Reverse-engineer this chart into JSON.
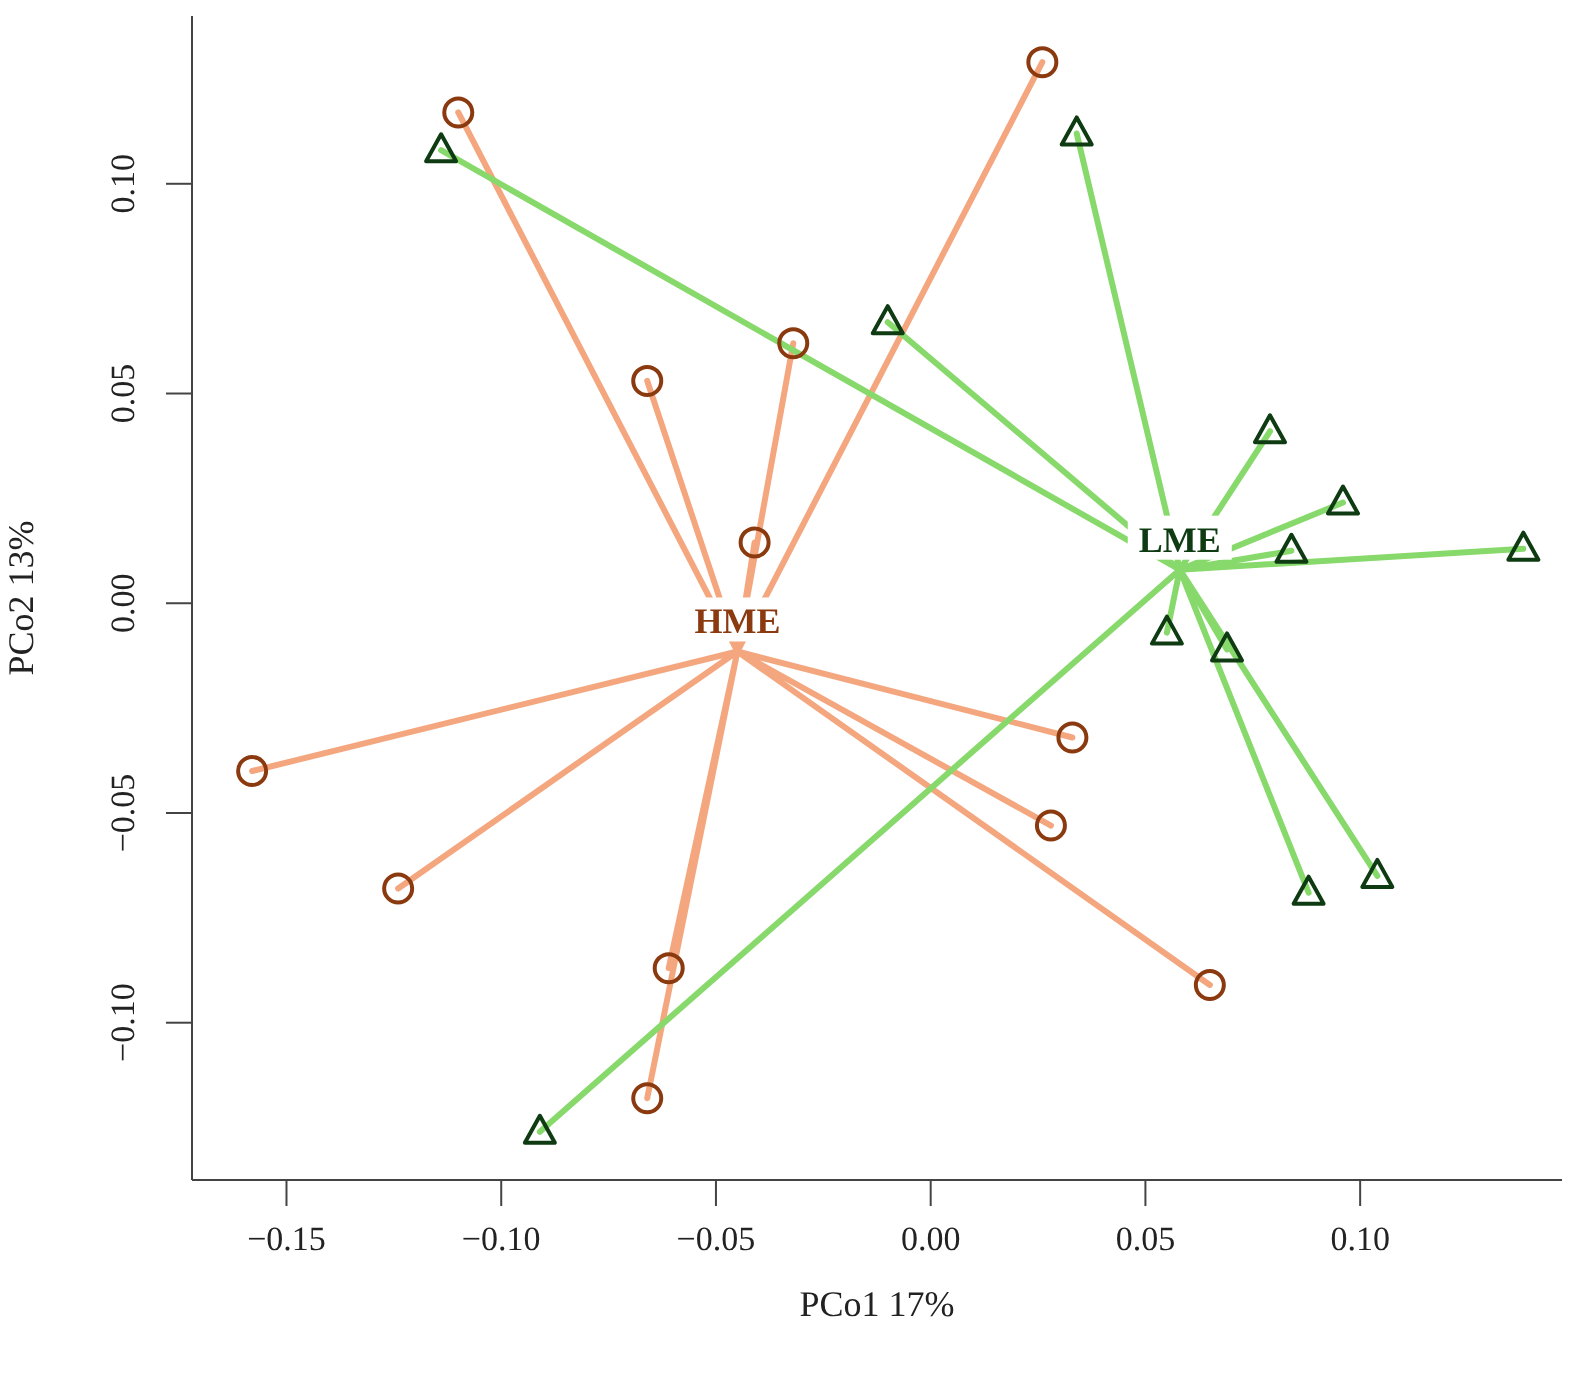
{
  "chart_data": {
    "type": "scatter",
    "xlabel": "PCo1 17%",
    "ylabel": "PCo2 13%",
    "xlim": [
      -0.172,
      0.147
    ],
    "ylim": [
      -0.1375,
      0.14
    ],
    "xticks": [
      {
        "value": -0.15,
        "label": "−0.15"
      },
      {
        "value": -0.1,
        "label": "−0.10"
      },
      {
        "value": -0.05,
        "label": "−0.05"
      },
      {
        "value": 0,
        "label": "0.00"
      },
      {
        "value": 0.05,
        "label": "0.05"
      },
      {
        "value": 0.1,
        "label": "0.10"
      }
    ],
    "yticks": [
      {
        "value": -0.1,
        "label": "−0.10"
      },
      {
        "value": -0.05,
        "label": "−0.05"
      },
      {
        "value": 0,
        "label": "0.00"
      },
      {
        "value": 0.05,
        "label": "0.05"
      },
      {
        "value": 0.1,
        "label": "0.10"
      }
    ],
    "grid": false,
    "annotations": [
      {
        "text": "HME",
        "x": -0.045,
        "y": -0.0115
      },
      {
        "text": "LME",
        "x": 0.058,
        "y": 0.008
      }
    ],
    "series": [
      {
        "type": "line",
        "color": "#f4a77f",
        "marker": "none",
        "x": [
          -0.045,
          -0.11,
          -0.045,
          0.026,
          -0.045,
          -0.066,
          -0.045,
          -0.032,
          -0.045,
          -0.041,
          -0.045,
          -0.158,
          -0.045,
          -0.124,
          -0.045,
          0.033,
          -0.045,
          0.028,
          -0.045,
          0.065,
          -0.045,
          -0.061,
          -0.045,
          -0.066
        ],
        "values": [
          -0.0115,
          0.117,
          -0.0115,
          0.129,
          -0.0115,
          0.053,
          -0.0115,
          0.062,
          -0.0115,
          0.0145,
          -0.0115,
          -0.04,
          -0.0115,
          -0.068,
          -0.0115,
          -0.032,
          -0.0115,
          -0.053,
          -0.0115,
          -0.091,
          -0.0115,
          -0.087,
          -0.0115,
          -0.118
        ]
      },
      {
        "type": "line",
        "color": "#88d96b",
        "marker": "none",
        "x": [
          0.058,
          -0.114,
          0.058,
          0.034,
          0.058,
          -0.01,
          0.058,
          0.079,
          0.058,
          0.096,
          0.058,
          0.084,
          0.058,
          0.138,
          0.058,
          0.055,
          0.058,
          0.069,
          0.058,
          0.088,
          0.058,
          0.104,
          0.058,
          -0.091
        ],
        "values": [
          0.008,
          0.108,
          0.008,
          0.112,
          0.008,
          0.067,
          0.008,
          0.041,
          0.008,
          0.024,
          0.008,
          0.0125,
          0.008,
          0.013,
          0.008,
          -0.007,
          0.008,
          -0.011,
          0.008,
          -0.069,
          0.008,
          -0.065,
          0.008,
          -0.126
        ]
      },
      {
        "color": "#8b3a10",
        "marker": "circle",
        "x": [
          -0.11,
          0.026,
          -0.066,
          -0.032,
          -0.041,
          -0.158,
          -0.124,
          0.033,
          0.028,
          0.065,
          -0.061,
          -0.066
        ],
        "values": [
          0.117,
          0.129,
          0.053,
          0.062,
          0.0145,
          -0.04,
          -0.068,
          -0.032,
          -0.053,
          -0.091,
          -0.087,
          -0.118
        ]
      },
      {
        "color": "#0e3b12",
        "marker": "triangle",
        "x": [
          -0.114,
          0.034,
          -0.01,
          0.079,
          0.096,
          0.084,
          0.138,
          0.055,
          0.069,
          0.088,
          0.104,
          -0.091
        ],
        "values": [
          0.108,
          0.112,
          0.067,
          0.041,
          0.024,
          0.0125,
          0.013,
          -0.007,
          -0.011,
          -0.069,
          -0.065,
          -0.126
        ]
      }
    ]
  }
}
